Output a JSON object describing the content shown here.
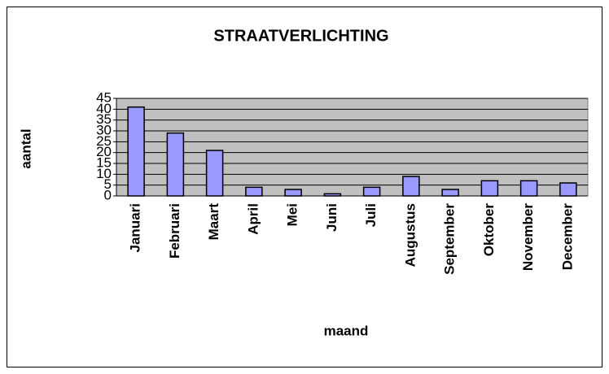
{
  "chart_data": {
    "type": "bar",
    "title": "STRAATVERLICHTING",
    "xlabel": "maand",
    "ylabel": "aantal",
    "categories": [
      "Januari",
      "Februari",
      "Maart",
      "April",
      "Mei",
      "Juni",
      "Juli",
      "Augustus",
      "September",
      "Oktober",
      "November",
      "December"
    ],
    "values": [
      41,
      29,
      21,
      4,
      3,
      1,
      4,
      9,
      3,
      7,
      7,
      6
    ],
    "color": "#9999ff",
    "ylim": [
      0,
      45
    ],
    "yticks": [
      0,
      5,
      10,
      15,
      20,
      25,
      30,
      35,
      40,
      45
    ],
    "grid": true
  }
}
